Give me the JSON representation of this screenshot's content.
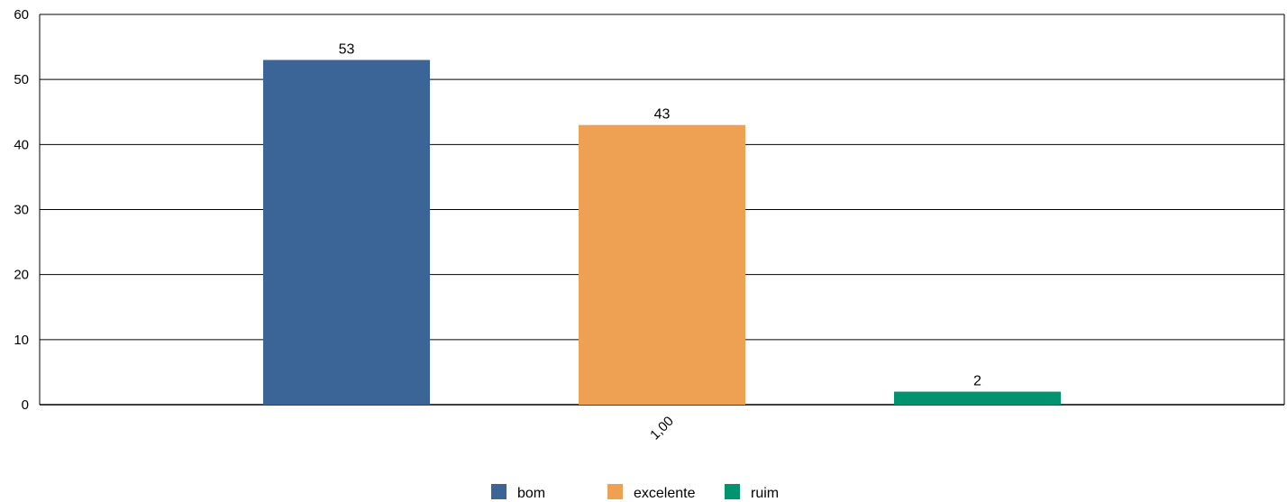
{
  "chart_data": {
    "type": "bar",
    "categories": [
      "1,00"
    ],
    "series": [
      {
        "name": "bom",
        "values": [
          53
        ],
        "color": "#3b6597"
      },
      {
        "name": "excelente",
        "values": [
          43
        ],
        "color": "#eea152"
      },
      {
        "name": "ruim",
        "values": [
          2
        ],
        "color": "#009370"
      }
    ],
    "data_labels": [
      "53",
      "43",
      "2"
    ],
    "y_ticks": [
      "0",
      "10",
      "20",
      "30",
      "40",
      "50",
      "60"
    ],
    "ylim": [
      0,
      60
    ],
    "grid": true,
    "legend_position": "bottom-center",
    "x_tick_rotation_deg": -45
  }
}
